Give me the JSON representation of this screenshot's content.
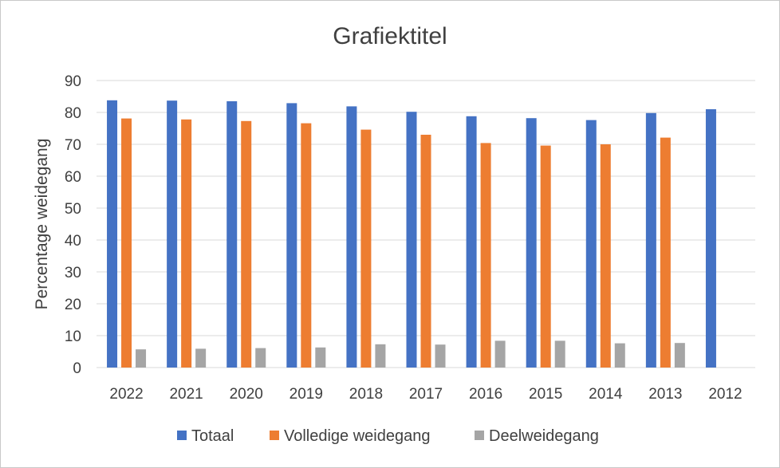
{
  "chart_data": {
    "type": "bar",
    "title": "Grafiektitel",
    "xlabel": "",
    "ylabel": "Percentage weidegang",
    "ylim": [
      0,
      90
    ],
    "yticks": [
      0,
      10,
      20,
      30,
      40,
      50,
      60,
      70,
      80,
      90
    ],
    "grid": true,
    "legend_position": "bottom",
    "categories": [
      "2022",
      "2021",
      "2020",
      "2019",
      "2018",
      "2017",
      "2016",
      "2015",
      "2014",
      "2013",
      "2012"
    ],
    "series": [
      {
        "name": "Totaal",
        "color": "#4472C4",
        "values": [
          83.8,
          83.7,
          83.5,
          82.9,
          81.9,
          80.2,
          78.8,
          78.2,
          77.6,
          79.8,
          81.0
        ]
      },
      {
        "name": "Volledige weidegang",
        "color": "#ED7D31",
        "values": [
          78.1,
          77.8,
          77.3,
          76.6,
          74.6,
          73.0,
          70.4,
          69.6,
          70.0,
          72.1,
          null
        ]
      },
      {
        "name": "Deelweidegang",
        "color": "#A5A5A5",
        "values": [
          5.7,
          5.9,
          6.1,
          6.3,
          7.3,
          7.2,
          8.4,
          8.4,
          7.6,
          7.7,
          null
        ]
      }
    ]
  }
}
